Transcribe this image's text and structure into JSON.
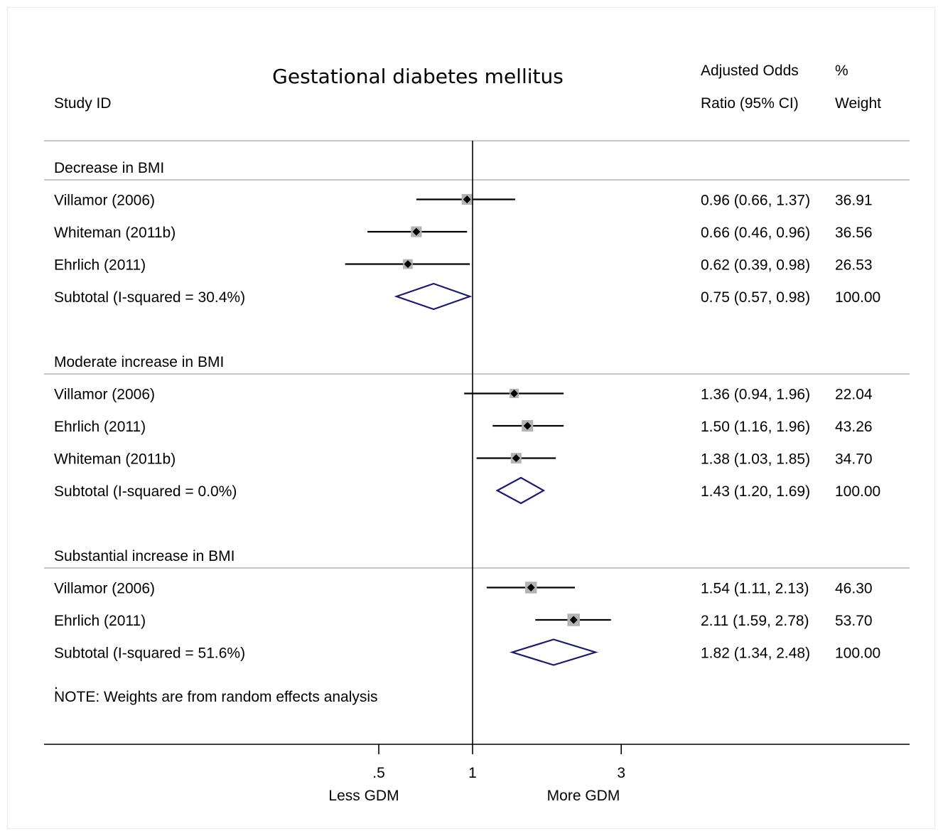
{
  "chart_data": {
    "type": "forest",
    "title": "Gestational diabetes mellitus",
    "column_headers": {
      "study": "Study ID",
      "or_line1": "Adjusted Odds",
      "or_line2": "Ratio (95% CI)",
      "weight_line1": "%",
      "weight_line2": "Weight"
    },
    "x_scale": "log",
    "xlim": [
      0.3,
      4.5
    ],
    "null_value": 1,
    "ticks": [
      {
        "value": 0.5,
        "label": ".5"
      },
      {
        "value": 1,
        "label": "1"
      },
      {
        "value": 3,
        "label": "3"
      }
    ],
    "direction_labels": {
      "left": "Less GDM",
      "right": "More GDM"
    },
    "groups": [
      {
        "name": "Decrease in BMI",
        "studies": [
          {
            "label": "Villamor (2006)",
            "or": 0.96,
            "lo": 0.66,
            "hi": 1.37,
            "or_text": "0.96 (0.66, 1.37)",
            "weight": "36.91"
          },
          {
            "label": "Whiteman (2011b)",
            "or": 0.66,
            "lo": 0.46,
            "hi": 0.96,
            "or_text": "0.66 (0.46, 0.96)",
            "weight": "36.56"
          },
          {
            "label": "Ehrlich (2011)",
            "or": 0.62,
            "lo": 0.39,
            "hi": 0.98,
            "or_text": "0.62 (0.39, 0.98)",
            "weight": "26.53"
          }
        ],
        "subtotal": {
          "label": "Subtotal  (I-squared = 30.4%)",
          "or": 0.75,
          "lo": 0.57,
          "hi": 0.98,
          "or_text": "0.75 (0.57, 0.98)",
          "weight": "100.00"
        }
      },
      {
        "name": "Moderate increase in BMI",
        "studies": [
          {
            "label": "Villamor (2006)",
            "or": 1.36,
            "lo": 0.94,
            "hi": 1.96,
            "or_text": "1.36 (0.94, 1.96)",
            "weight": "22.04"
          },
          {
            "label": "Ehrlich (2011)",
            "or": 1.5,
            "lo": 1.16,
            "hi": 1.96,
            "or_text": "1.50 (1.16, 1.96)",
            "weight": "43.26"
          },
          {
            "label": "Whiteman (2011b)",
            "or": 1.38,
            "lo": 1.03,
            "hi": 1.85,
            "or_text": "1.38 (1.03, 1.85)",
            "weight": "34.70"
          }
        ],
        "subtotal": {
          "label": "Subtotal  (I-squared = 0.0%)",
          "or": 1.43,
          "lo": 1.2,
          "hi": 1.69,
          "or_text": "1.43 (1.20, 1.69)",
          "weight": "100.00"
        }
      },
      {
        "name": "Substantial increase in BMI",
        "studies": [
          {
            "label": "Villamor (2006)",
            "or": 1.54,
            "lo": 1.11,
            "hi": 2.13,
            "or_text": "1.54 (1.11, 2.13)",
            "weight": "46.30"
          },
          {
            "label": "Ehrlich (2011)",
            "or": 2.11,
            "lo": 1.59,
            "hi": 2.78,
            "or_text": "2.11 (1.59, 2.78)",
            "weight": "53.70"
          }
        ],
        "subtotal": {
          "label": "Subtotal  (I-squared = 51.6%)",
          "or": 1.82,
          "lo": 1.34,
          "hi": 2.48,
          "or_text": "1.82 (1.34, 2.48)",
          "weight": "100.00"
        }
      }
    ],
    "note": "NOTE: Weights are from random effects analysis",
    "colors": {
      "ci_line": "#000000",
      "weight_box": "#b3b3b3",
      "point": "#000000",
      "diamond": "#1a1a66",
      "separator": "#c8c8c8",
      "axis": "#000000"
    }
  }
}
